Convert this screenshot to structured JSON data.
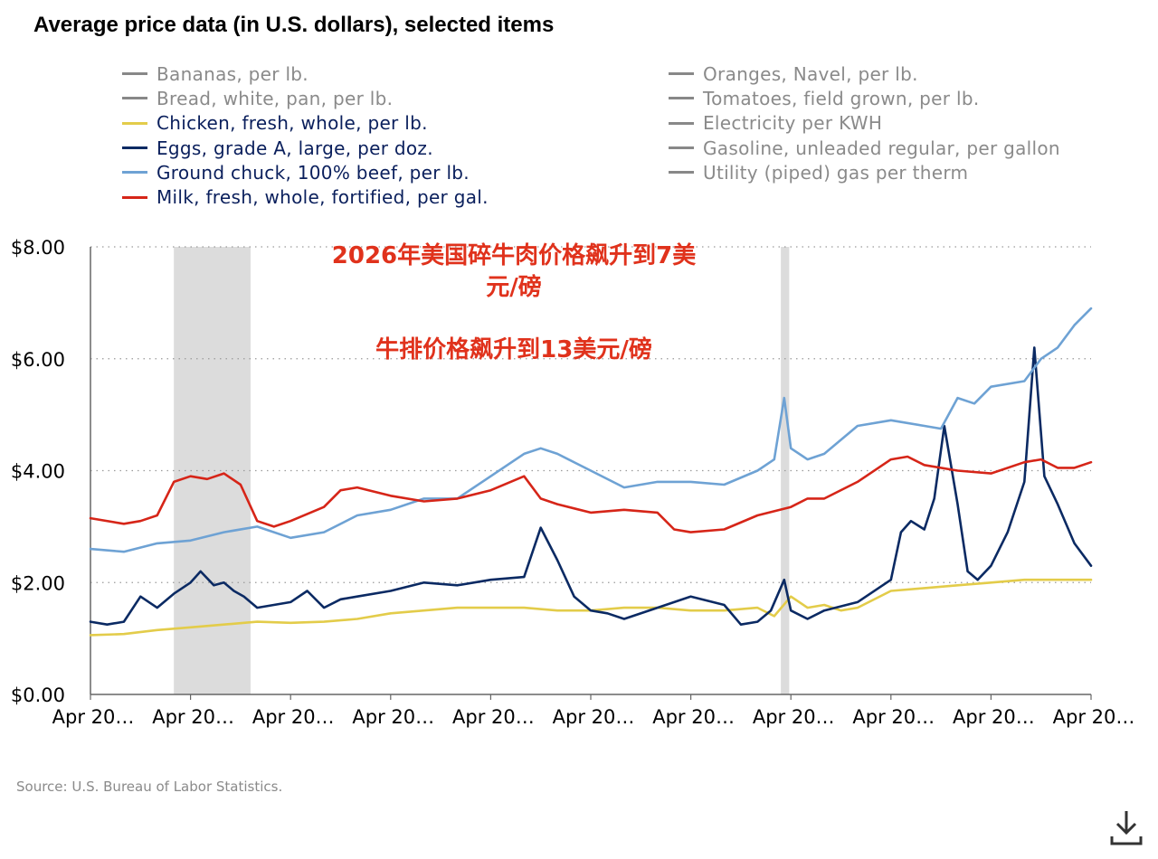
{
  "title": "Average price data (in U.S. dollars), selected items",
  "source": "Source: U.S. Bureau of Labor Statistics.",
  "legend_left": [
    {
      "label": "Bananas, per lb.",
      "active": false,
      "color": "#888888"
    },
    {
      "label": "Bread, white, pan, per lb.",
      "active": false,
      "color": "#888888"
    },
    {
      "label": "Chicken, fresh, whole, per lb.",
      "active": true,
      "color": "#e3cc4a"
    },
    {
      "label": "Eggs, grade A, large, per doz.",
      "active": true,
      "color": "#0b2a63"
    },
    {
      "label": "Ground chuck, 100% beef, per lb.",
      "active": true,
      "color": "#6ea2d4"
    },
    {
      "label": "Milk, fresh, whole, fortified, per gal.",
      "active": true,
      "color": "#d62518"
    }
  ],
  "legend_right": [
    {
      "label": "Oranges, Navel, per lb.",
      "active": false,
      "color": "#888888"
    },
    {
      "label": "Tomatoes, field grown, per lb.",
      "active": false,
      "color": "#888888"
    },
    {
      "label": "Electricity per KWH",
      "active": false,
      "color": "#888888"
    },
    {
      "label": "Gasoline, unleaded regular, per gallon",
      "active": false,
      "color": "#888888"
    },
    {
      "label": "Utility (piped) gas per therm",
      "active": false,
      "color": "#888888"
    }
  ],
  "annotation": {
    "line1": "2026年美国碎牛肉价格飙升到7美",
    "line2": "元/磅",
    "line3": "牛排价格飙升到13美元/磅",
    "color": "#e0321c"
  },
  "chart_data": {
    "type": "line",
    "title": "Average price data (in U.S. dollars), selected items",
    "x_tick_labels": [
      "Apr 20…",
      "Apr 20…",
      "Apr 20…",
      "Apr 20…",
      "Apr 20…",
      "Apr 20…",
      "Apr 20…",
      "Apr 20…",
      "Apr 20…",
      "Apr 20…",
      "Apr 20…"
    ],
    "xlim": [
      0,
      30
    ],
    "y_tick_labels": [
      "$0.00",
      "$2.00",
      "$4.00",
      "$6.00",
      "$8.00"
    ],
    "y_ticks": [
      0,
      2,
      4,
      6,
      8
    ],
    "ylim": [
      0,
      8
    ],
    "grid": "horizontal dotted",
    "legend_position": "top",
    "shaded_periods": [
      [
        2.5,
        4.8
      ],
      [
        20.7,
        20.95
      ]
    ],
    "series": [
      {
        "name": "Chicken, fresh, whole, per lb.",
        "color": "#e3cc4a",
        "x": [
          0,
          1,
          2,
          3,
          4,
          5,
          6,
          7,
          8,
          9,
          10,
          11,
          12,
          13,
          14,
          15,
          16,
          17,
          18,
          19,
          20,
          20.5,
          21,
          21.5,
          22,
          22.5,
          23,
          24,
          25,
          26,
          27,
          28,
          29,
          30
        ],
        "y": [
          1.06,
          1.08,
          1.15,
          1.2,
          1.25,
          1.3,
          1.28,
          1.3,
          1.35,
          1.45,
          1.5,
          1.55,
          1.55,
          1.55,
          1.5,
          1.5,
          1.55,
          1.55,
          1.5,
          1.5,
          1.55,
          1.4,
          1.75,
          1.55,
          1.6,
          1.5,
          1.55,
          1.85,
          1.9,
          1.95,
          2.0,
          2.05,
          2.05,
          2.05
        ]
      },
      {
        "name": "Eggs, grade A, large, per doz.",
        "color": "#0b2a63",
        "x": [
          0,
          0.5,
          1,
          1.5,
          2,
          2.5,
          3,
          3,
          3.3,
          3.7,
          4,
          4.3,
          4.6,
          5,
          6,
          6.5,
          7,
          7.5,
          8,
          9,
          10,
          11,
          12,
          13,
          13.5,
          14,
          14.5,
          15,
          15.5,
          16,
          17,
          18,
          19,
          19.5,
          20,
          20.4,
          20.8,
          21,
          21.5,
          22,
          23,
          24,
          24.3,
          24.6,
          25,
          25.3,
          25.6,
          26,
          26.3,
          26.6,
          27,
          27.5,
          28,
          28.3,
          28.6,
          29,
          29.5,
          30
        ],
        "y": [
          1.3,
          1.25,
          1.3,
          1.75,
          1.55,
          1.8,
          2.0,
          2.0,
          2.2,
          1.95,
          2.0,
          1.85,
          1.75,
          1.55,
          1.65,
          1.85,
          1.55,
          1.7,
          1.75,
          1.85,
          2.0,
          1.95,
          2.05,
          2.1,
          2.98,
          2.4,
          1.75,
          1.5,
          1.45,
          1.35,
          1.55,
          1.75,
          1.6,
          1.25,
          1.3,
          1.5,
          2.05,
          1.5,
          1.35,
          1.5,
          1.65,
          2.05,
          2.9,
          3.1,
          2.95,
          3.5,
          4.8,
          3.4,
          2.2,
          2.05,
          2.3,
          2.9,
          3.8,
          6.2,
          3.9,
          3.4,
          2.7,
          2.3
        ]
      },
      {
        "name": "Ground chuck, 100% beef, per lb.",
        "color": "#6ea2d4",
        "x": [
          0,
          1,
          2,
          3,
          4,
          5,
          6,
          7,
          8,
          9,
          10,
          11,
          12,
          13,
          13.5,
          14,
          15,
          16,
          17,
          18,
          19,
          20,
          20.5,
          20.8,
          21,
          21.5,
          22,
          23,
          24,
          25,
          25.5,
          26,
          26.5,
          27,
          28,
          28.5,
          29,
          29.5,
          30
        ],
        "y": [
          2.6,
          2.55,
          2.7,
          2.75,
          2.9,
          3.0,
          2.8,
          2.9,
          3.2,
          3.3,
          3.5,
          3.5,
          3.9,
          4.3,
          4.4,
          4.3,
          4.0,
          3.7,
          3.8,
          3.8,
          3.75,
          4.0,
          4.2,
          5.3,
          4.4,
          4.2,
          4.3,
          4.8,
          4.9,
          4.8,
          4.75,
          5.3,
          5.2,
          5.5,
          5.6,
          6.0,
          6.2,
          6.6,
          6.9
        ]
      },
      {
        "name": "Milk, fresh, whole, fortified, per gal.",
        "color": "#d62518",
        "x": [
          0,
          1,
          1.5,
          2,
          2.5,
          3,
          3.5,
          4,
          4.5,
          5,
          5.5,
          6,
          7,
          7.5,
          8,
          9,
          10,
          11,
          12,
          13,
          13.5,
          14,
          15,
          16,
          17,
          17.5,
          18,
          19,
          20,
          21,
          21.5,
          22,
          23,
          24,
          24.5,
          25,
          26,
          27,
          28,
          28.5,
          29,
          29.5,
          30
        ],
        "y": [
          3.15,
          3.05,
          3.1,
          3.2,
          3.8,
          3.9,
          3.85,
          3.95,
          3.75,
          3.1,
          3.0,
          3.1,
          3.35,
          3.65,
          3.7,
          3.55,
          3.45,
          3.5,
          3.65,
          3.9,
          3.5,
          3.4,
          3.25,
          3.3,
          3.25,
          2.95,
          2.9,
          2.95,
          3.2,
          3.35,
          3.5,
          3.5,
          3.8,
          4.2,
          4.25,
          4.1,
          4.0,
          3.95,
          4.15,
          4.2,
          4.05,
          4.05,
          4.15
        ]
      }
    ]
  }
}
